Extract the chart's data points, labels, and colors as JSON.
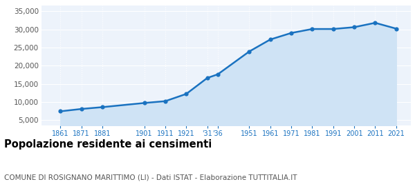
{
  "years": [
    1861,
    1871,
    1881,
    1901,
    1911,
    1921,
    1931,
    1936,
    1951,
    1961,
    1971,
    1981,
    1991,
    2001,
    2011,
    2021
  ],
  "population": [
    7400,
    8050,
    8550,
    9700,
    10200,
    12200,
    16600,
    17600,
    23900,
    27200,
    29000,
    30100,
    30100,
    30600,
    31800,
    30200
  ],
  "line_color": "#1a72c0",
  "fill_color": "#cfe3f5",
  "marker_color": "#1a72c0",
  "bg_color": "#edf3fb",
  "grid_color": "#ffffff",
  "title": "Popolazione residente ai censimenti",
  "subtitle": "COMUNE DI ROSIGNANO MARITTIMO (LI) - Dati ISTAT - Elaborazione TUTTITALIA.IT",
  "title_fontsize": 10.5,
  "subtitle_fontsize": 7.5,
  "ylabel_ticks": [
    5000,
    10000,
    15000,
    20000,
    25000,
    30000,
    35000
  ],
  "ylim": [
    3500,
    36500
  ],
  "xlim": [
    1852,
    2028
  ],
  "tick_color": "#1a72c0",
  "x_positions": [
    1861,
    1871,
    1881,
    1901,
    1911,
    1921,
    1931,
    1936,
    1951,
    1961,
    1971,
    1981,
    1991,
    2001,
    2011,
    2021
  ],
  "x_labels": [
    "1861",
    "1871",
    "1881",
    "1901",
    "1911",
    "1921",
    "'31",
    "'36",
    "1951",
    "1961",
    "1971",
    "1981",
    "1991",
    "2001",
    "2011",
    "2021"
  ]
}
